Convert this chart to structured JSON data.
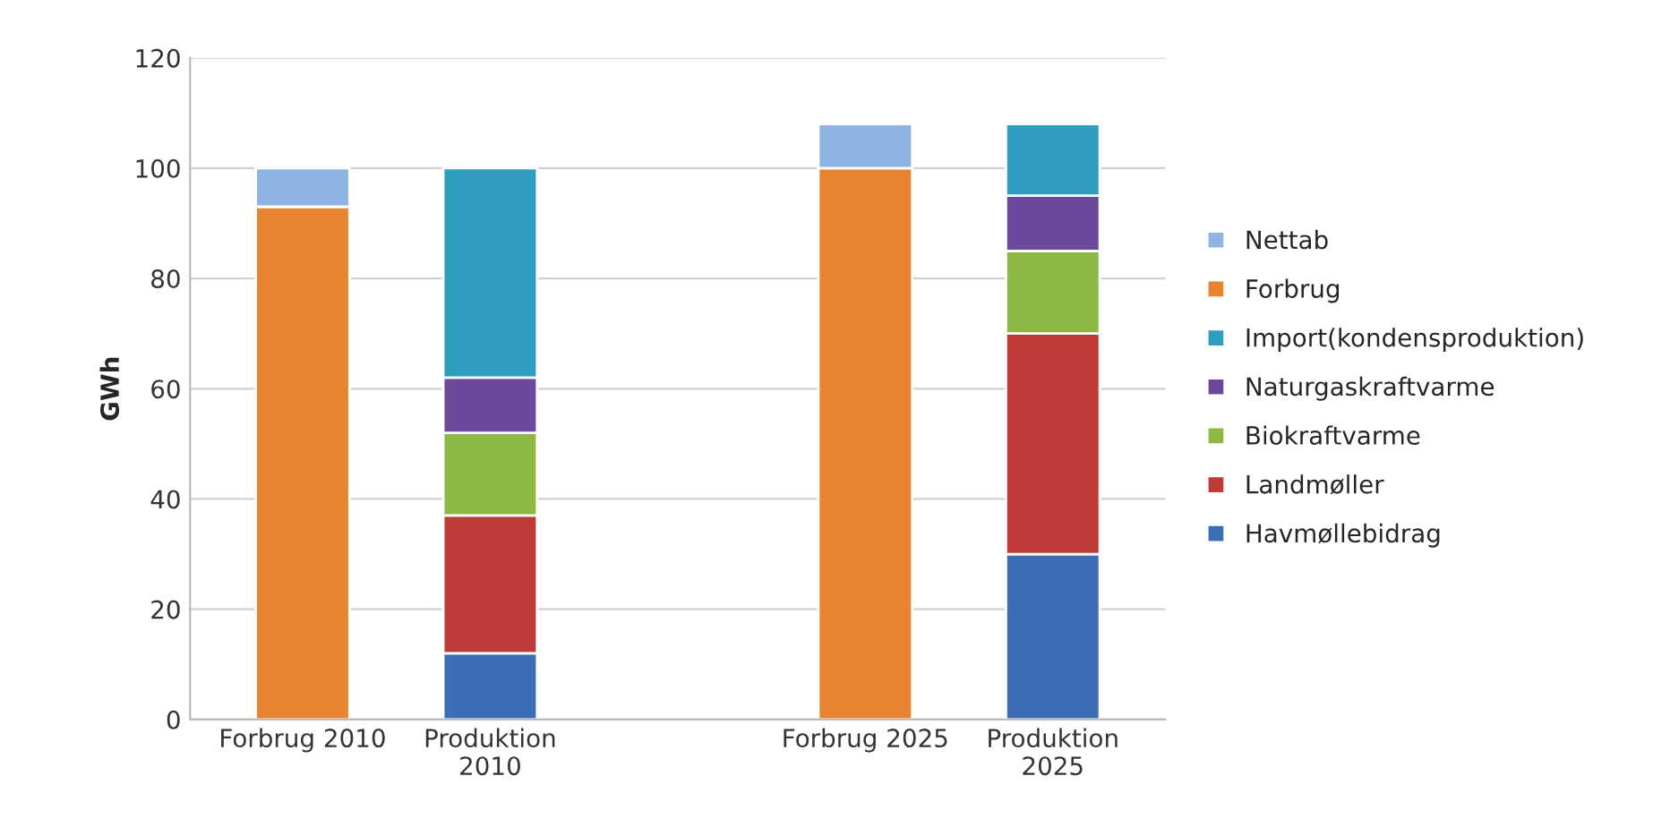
{
  "chart_data": {
    "type": "bar",
    "stacked": true,
    "ylabel": "GWh",
    "categories": [
      "Forbrug 2010",
      "Produktion\n2010",
      null,
      "Forbrug 2025",
      "Produktion\n2025"
    ],
    "series": [
      {
        "name": "Havmøllebidrag",
        "color": "#3c6db5",
        "values": [
          null,
          12,
          null,
          null,
          30
        ]
      },
      {
        "name": "Landmøller",
        "color": "#be3b37",
        "values": [
          null,
          25,
          null,
          null,
          40
        ]
      },
      {
        "name": "Biokraftvarme",
        "color": "#8db843",
        "values": [
          null,
          15,
          null,
          null,
          15
        ]
      },
      {
        "name": "Naturgaskraftvarme",
        "color": "#6b4a9e",
        "values": [
          null,
          10,
          null,
          null,
          10
        ]
      },
      {
        "name": "Import(kondensproduktion)",
        "color": "#2f9dc0",
        "values": [
          null,
          38,
          null,
          null,
          13
        ]
      },
      {
        "name": "Forbrug",
        "color": "#e8832f",
        "values": [
          93,
          null,
          null,
          100,
          null
        ]
      },
      {
        "name": "Nettab",
        "color": "#8eb4e3",
        "values": [
          7,
          null,
          null,
          8,
          null
        ]
      }
    ],
    "ylim": [
      0,
      120
    ],
    "yticks": [
      0,
      20,
      40,
      60,
      80,
      100,
      120
    ],
    "grid": "y",
    "legend": "right"
  }
}
